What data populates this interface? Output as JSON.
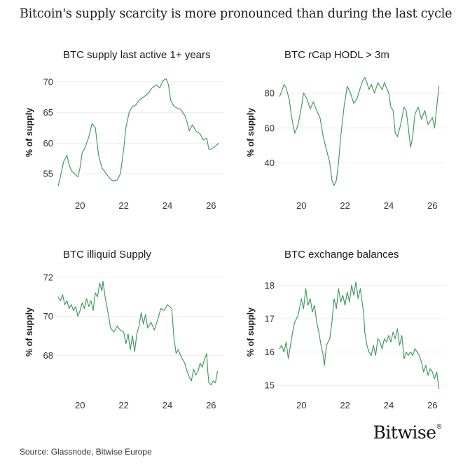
{
  "headline": "Bitcoin's supply scarcity is more pronounced than during the last cycle",
  "source": "Source: Glassnode, Bitwise Europe",
  "logo": {
    "text": "Bitwise",
    "mark": "®"
  },
  "colors": {
    "line": "#3d9a58",
    "text": "#1a1a1a",
    "grid": "#eeeeee"
  },
  "chart_data": [
    {
      "type": "line",
      "title": "BTC supply last active 1+ years",
      "ylabel": "% of supply",
      "xlim": [
        2018.9,
        2026.6
      ],
      "ylim": [
        52.5,
        71
      ],
      "xticks": [
        {
          "v": 2020,
          "label": "20"
        },
        {
          "v": 2022,
          "label": "22"
        },
        {
          "v": 2024,
          "label": "24"
        },
        {
          "v": 2026,
          "label": "26"
        }
      ],
      "yticks": [
        {
          "v": 55,
          "label": "55"
        },
        {
          "v": 60,
          "label": "60"
        },
        {
          "v": 65,
          "label": "65"
        },
        {
          "v": 70,
          "label": "70"
        }
      ],
      "series": [
        {
          "x": [
            2019.0,
            2019.1,
            2019.25,
            2019.4,
            2019.5,
            2019.6,
            2019.75,
            2019.9,
            2020.0,
            2020.1,
            2020.2,
            2020.4,
            2020.55,
            2020.7,
            2020.85,
            2021.0,
            2021.1,
            2021.2,
            2021.35,
            2021.5,
            2021.7,
            2021.85,
            2022.0,
            2022.1,
            2022.25,
            2022.4,
            2022.55,
            2022.7,
            2022.9,
            2023.1,
            2023.3,
            2023.5,
            2023.65,
            2023.8,
            2023.95,
            2024.05,
            2024.15,
            2024.3,
            2024.45,
            2024.6,
            2024.8,
            2024.9,
            2025.0,
            2025.15,
            2025.3,
            2025.5,
            2025.65,
            2025.8,
            2025.9,
            2026.0,
            2026.2,
            2026.35
          ],
          "y": [
            53.0,
            54.5,
            57.0,
            58.0,
            56.5,
            55.5,
            55.0,
            54.5,
            56.0,
            58.5,
            59.0,
            61.0,
            63.2,
            62.5,
            58.0,
            56.0,
            55.5,
            55.0,
            54.3,
            53.8,
            54.0,
            55.0,
            59.0,
            62.5,
            65.0,
            66.0,
            66.2,
            67.0,
            67.5,
            68.0,
            69.0,
            69.5,
            69.0,
            70.2,
            70.5,
            69.5,
            67.0,
            66.0,
            65.7,
            65.5,
            64.5,
            63.5,
            62.0,
            63.0,
            62.0,
            61.5,
            60.5,
            60.8,
            59.0,
            59.0,
            59.5,
            60.0
          ]
        }
      ]
    },
    {
      "type": "line",
      "title": "BTC rCap HODL > 3m",
      "ylabel": "% of supply",
      "xlim": [
        2018.9,
        2026.6
      ],
      "ylim": [
        25,
        90
      ],
      "xticks": [
        {
          "v": 2020,
          "label": "20"
        },
        {
          "v": 2022,
          "label": "22"
        },
        {
          "v": 2024,
          "label": "24"
        },
        {
          "v": 2026,
          "label": "26"
        }
      ],
      "yticks": [
        {
          "v": 40,
          "label": "40"
        },
        {
          "v": 60,
          "label": "60"
        },
        {
          "v": 80,
          "label": "80"
        }
      ],
      "series": [
        {
          "x": [
            2019.0,
            2019.1,
            2019.2,
            2019.3,
            2019.45,
            2019.55,
            2019.7,
            2019.85,
            2020.0,
            2020.1,
            2020.25,
            2020.4,
            2020.55,
            2020.7,
            2020.85,
            2021.0,
            2021.1,
            2021.2,
            2021.3,
            2021.4,
            2021.5,
            2021.6,
            2021.7,
            2021.8,
            2021.95,
            2022.1,
            2022.25,
            2022.4,
            2022.55,
            2022.7,
            2022.8,
            2022.9,
            2023.0,
            2023.1,
            2023.2,
            2023.35,
            2023.5,
            2023.6,
            2023.7,
            2023.8,
            2023.9,
            2024.0,
            2024.1,
            2024.2,
            2024.3,
            2024.4,
            2024.55,
            2024.7,
            2024.8,
            2024.9,
            2025.0,
            2025.1,
            2025.2,
            2025.35,
            2025.5,
            2025.65,
            2025.8,
            2025.9,
            2026.0,
            2026.1,
            2026.2,
            2026.3
          ],
          "y": [
            78,
            81,
            85,
            83,
            76,
            66,
            57,
            62,
            72,
            80,
            77,
            71,
            75,
            70,
            66,
            55,
            50,
            45,
            40,
            30,
            27,
            30,
            40,
            55,
            72,
            84,
            80,
            74,
            77,
            83,
            87,
            89,
            86,
            82,
            85,
            80,
            86,
            84,
            82,
            86,
            83,
            80,
            72,
            70,
            57,
            55,
            62,
            72,
            70,
            60,
            49,
            55,
            68,
            72,
            65,
            70,
            62,
            64,
            66,
            60,
            72,
            84
          ]
        }
      ]
    },
    {
      "type": "line",
      "title": "BTC illiquid Supply",
      "ylabel": "% of supply",
      "xlim": [
        2018.9,
        2026.6
      ],
      "ylim": [
        66.3,
        72.1
      ],
      "xticks": [
        {
          "v": 2020,
          "label": "20"
        },
        {
          "v": 2022,
          "label": "22"
        },
        {
          "v": 2024,
          "label": "24"
        },
        {
          "v": 2026,
          "label": "26"
        }
      ],
      "yticks": [
        {
          "v": 68,
          "label": "68"
        },
        {
          "v": 70,
          "label": "70"
        },
        {
          "v": 72,
          "label": "72"
        }
      ],
      "series": [
        {
          "x": [
            2019.0,
            2019.1,
            2019.2,
            2019.3,
            2019.4,
            2019.5,
            2019.6,
            2019.7,
            2019.8,
            2019.9,
            2020.0,
            2020.1,
            2020.2,
            2020.3,
            2020.4,
            2020.5,
            2020.6,
            2020.7,
            2020.8,
            2020.9,
            2021.0,
            2021.05,
            2021.15,
            2021.25,
            2021.4,
            2021.55,
            2021.7,
            2021.85,
            2022.0,
            2022.1,
            2022.2,
            2022.3,
            2022.4,
            2022.5,
            2022.6,
            2022.7,
            2022.8,
            2022.9,
            2023.0,
            2023.1,
            2023.25,
            2023.4,
            2023.55,
            2023.7,
            2023.85,
            2024.0,
            2024.1,
            2024.2,
            2024.3,
            2024.4,
            2024.5,
            2024.6,
            2024.7,
            2024.8,
            2024.9,
            2025.0,
            2025.1,
            2025.2,
            2025.3,
            2025.4,
            2025.5,
            2025.6,
            2025.7,
            2025.8,
            2025.85,
            2025.9,
            2026.0,
            2026.1,
            2026.2,
            2026.3
          ],
          "y": [
            71.0,
            70.8,
            71.1,
            70.6,
            70.8,
            70.4,
            70.6,
            70.3,
            70.5,
            70.0,
            70.3,
            70.7,
            70.4,
            70.9,
            70.5,
            70.8,
            70.3,
            71.2,
            71.0,
            71.7,
            71.3,
            71.8,
            71.0,
            70.4,
            69.4,
            69.2,
            69.5,
            69.3,
            69.2,
            68.6,
            69.1,
            68.3,
            69.0,
            68.2,
            69.1,
            69.5,
            70.2,
            69.6,
            70.1,
            69.4,
            69.7,
            69.3,
            69.8,
            70.4,
            70.3,
            70.6,
            70.5,
            70.4,
            68.9,
            68.1,
            68.3,
            68.0,
            67.8,
            67.6,
            67.2,
            66.9,
            66.7,
            67.3,
            67.0,
            67.2,
            67.6,
            67.4,
            67.8,
            68.1,
            67.2,
            66.6,
            66.5,
            66.7,
            66.6,
            67.2
          ]
        }
      ]
    },
    {
      "type": "line",
      "title": "BTC exchange balances",
      "ylabel": "% of supply",
      "xlim": [
        2018.9,
        2026.6
      ],
      "ylim": [
        14.9,
        18.3
      ],
      "xticks": [
        {
          "v": 2020,
          "label": "20"
        },
        {
          "v": 2022,
          "label": "22"
        },
        {
          "v": 2024,
          "label": "24"
        },
        {
          "v": 2026,
          "label": "26"
        }
      ],
      "yticks": [
        {
          "v": 15,
          "label": "15"
        },
        {
          "v": 16,
          "label": "16"
        },
        {
          "v": 17,
          "label": "17"
        },
        {
          "v": 18,
          "label": "18"
        }
      ],
      "series": [
        {
          "x": [
            2019.0,
            2019.1,
            2019.2,
            2019.3,
            2019.4,
            2019.5,
            2019.6,
            2019.7,
            2019.85,
            2020.0,
            2020.1,
            2020.2,
            2020.3,
            2020.4,
            2020.5,
            2020.6,
            2020.7,
            2020.8,
            2020.9,
            2021.0,
            2021.05,
            2021.15,
            2021.3,
            2021.4,
            2021.5,
            2021.6,
            2021.7,
            2021.8,
            2021.9,
            2022.0,
            2022.1,
            2022.2,
            2022.3,
            2022.4,
            2022.5,
            2022.6,
            2022.7,
            2022.8,
            2022.85,
            2022.9,
            2023.0,
            2023.1,
            2023.2,
            2023.3,
            2023.4,
            2023.5,
            2023.6,
            2023.7,
            2023.8,
            2023.9,
            2024.0,
            2024.1,
            2024.2,
            2024.3,
            2024.4,
            2024.5,
            2024.6,
            2024.7,
            2024.8,
            2024.9,
            2025.0,
            2025.1,
            2025.2,
            2025.3,
            2025.4,
            2025.5,
            2025.6,
            2025.7,
            2025.8,
            2025.9,
            2026.0,
            2026.1,
            2026.2,
            2026.3
          ],
          "y": [
            16.1,
            16.2,
            16.0,
            16.3,
            15.8,
            16.2,
            16.6,
            16.9,
            17.1,
            17.6,
            17.3,
            17.9,
            17.4,
            17.6,
            17.2,
            17.4,
            16.9,
            16.6,
            16.2,
            15.9,
            15.6,
            16.2,
            16.4,
            16.9,
            17.6,
            17.3,
            17.9,
            17.5,
            17.7,
            17.4,
            17.8,
            17.5,
            18.0,
            17.7,
            18.1,
            17.6,
            17.9,
            17.4,
            17.2,
            16.6,
            16.2,
            16.0,
            15.9,
            16.2,
            15.9,
            16.4,
            16.3,
            16.1,
            16.4,
            16.3,
            16.5,
            16.3,
            16.6,
            16.4,
            16.7,
            16.2,
            16.5,
            15.8,
            16.0,
            15.9,
            16.0,
            15.9,
            16.1,
            16.0,
            15.9,
            15.7,
            15.4,
            15.6,
            15.3,
            15.5,
            15.4,
            15.2,
            15.4,
            14.9
          ]
        }
      ]
    }
  ]
}
